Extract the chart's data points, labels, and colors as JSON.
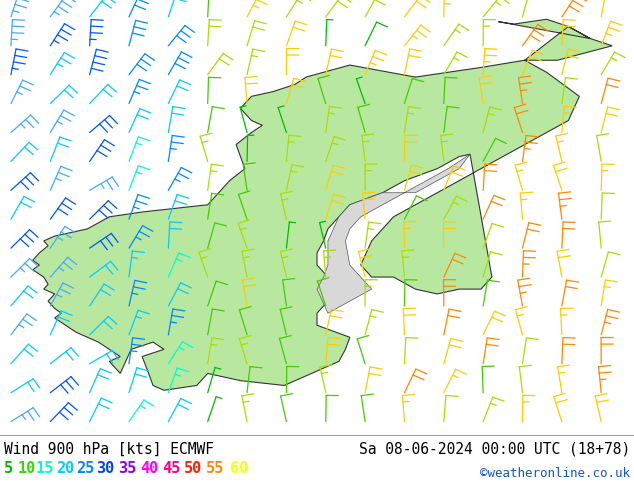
{
  "title_left": "Wind 900 hPa [kts] ECMWF",
  "title_right": "Sa 08-06-2024 00:00 UTC (18+78)",
  "credit": "©weatheronline.co.uk",
  "legend_values": [
    "5",
    "10",
    "15",
    "20",
    "25",
    "30",
    "35",
    "40",
    "45",
    "50",
    "55",
    "60"
  ],
  "legend_colors": [
    "#00bb00",
    "#33dd00",
    "#00ffcc",
    "#00ccff",
    "#0088ff",
    "#0044ff",
    "#8800ff",
    "#ff00ff",
    "#ff0088",
    "#ff2200",
    "#ff8800",
    "#ffff00"
  ],
  "bg_color": "#ffffff",
  "sea_color": "#d8d8d8",
  "land_color": "#b8e8a0",
  "bottom_bar_height": 0.115,
  "title_fontsize": 10.5,
  "credit_fontsize": 9,
  "legend_fontsize": 11,
  "fig_width": 6.34,
  "fig_height": 4.9,
  "map_region": {
    "lon_min": 3.0,
    "lon_max": 32.0,
    "lat_min": 54.0,
    "lat_max": 72.0
  }
}
